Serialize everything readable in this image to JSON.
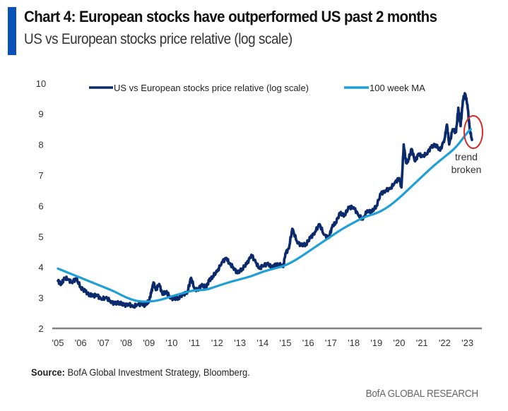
{
  "header": {
    "title": "Chart 4: European stocks have outperformed US past 2 months",
    "subtitle": "US vs European stocks price relative (log scale)",
    "accent_color": "#0a52b8"
  },
  "footer": {
    "source_label": "Source:",
    "source_text": " BofA Global Investment Strategy, Bloomberg.",
    "brand": "BofA GLOBAL RESEARCH"
  },
  "chart_data": {
    "type": "line",
    "title": "Chart 4: European stocks have outperformed US past 2 months",
    "subtitle": "US vs European stocks price relative (log scale)",
    "xlabel": "",
    "ylabel": "",
    "x_tick_labels": [
      "'05",
      "'06",
      "'07",
      "'08",
      "'09",
      "'10",
      "'11",
      "'12",
      "'13",
      "'14",
      "'15",
      "'16",
      "'17",
      "'18",
      "'19",
      "'20",
      "'21",
      "'22",
      "'23"
    ],
    "x_tick_years": [
      2005,
      2006,
      2007,
      2008,
      2009,
      2010,
      2011,
      2012,
      2013,
      2014,
      2015,
      2016,
      2017,
      2018,
      2019,
      2020,
      2021,
      2022,
      2023
    ],
    "y_ticks": [
      2,
      3,
      4,
      5,
      6,
      7,
      8,
      9,
      10
    ],
    "ylim": [
      2,
      10
    ],
    "xlim": [
      2005,
      2024
    ],
    "grid": false,
    "legend": {
      "position": "top",
      "entries": [
        "US vs European stocks price relative (log scale)",
        "100 week MA"
      ]
    },
    "series": [
      {
        "name": "US vs European stocks price relative (log scale)",
        "color": "#0b2a6b",
        "x": [
          2005.0,
          2005.15,
          2005.3,
          2005.45,
          2005.6,
          2005.8,
          2006.0,
          2006.2,
          2006.4,
          2006.55,
          2006.7,
          2006.9,
          2007.1,
          2007.3,
          2007.5,
          2007.7,
          2007.9,
          2008.1,
          2008.3,
          2008.5,
          2008.7,
          2008.85,
          2009.0,
          2009.1,
          2009.2,
          2009.3,
          2009.45,
          2009.6,
          2009.75,
          2009.9,
          2010.1,
          2010.3,
          2010.5,
          2010.7,
          2010.85,
          2011.0,
          2011.15,
          2011.3,
          2011.5,
          2011.65,
          2011.8,
          2012.0,
          2012.2,
          2012.4,
          2012.55,
          2012.7,
          2012.9,
          2013.1,
          2013.3,
          2013.5,
          2013.7,
          2013.85,
          2014.0,
          2014.2,
          2014.4,
          2014.55,
          2014.7,
          2014.9,
          2015.0,
          2015.15,
          2015.3,
          2015.5,
          2015.7,
          2015.9,
          2016.1,
          2016.3,
          2016.5,
          2016.7,
          2016.9,
          2017.05,
          2017.2,
          2017.4,
          2017.6,
          2017.8,
          2018.0,
          2018.2,
          2018.4,
          2018.6,
          2018.8,
          2019.0,
          2019.2,
          2019.4,
          2019.6,
          2019.8,
          2020.0,
          2020.1,
          2020.2,
          2020.3,
          2020.4,
          2020.55,
          2020.7,
          2020.85,
          2021.0,
          2021.2,
          2021.4,
          2021.6,
          2021.8,
          2022.0,
          2022.1,
          2022.2,
          2022.35,
          2022.5,
          2022.6,
          2022.7,
          2022.8,
          2022.9,
          2023.0,
          2023.1,
          2023.2
        ],
        "values": [
          3.55,
          3.45,
          3.65,
          3.6,
          3.5,
          3.62,
          3.35,
          3.2,
          3.1,
          3.05,
          3.1,
          2.95,
          3.0,
          2.9,
          2.8,
          2.85,
          2.75,
          2.8,
          2.7,
          2.78,
          2.8,
          2.75,
          2.9,
          3.15,
          3.5,
          3.25,
          3.45,
          3.1,
          3.2,
          3.05,
          2.95,
          3.0,
          3.1,
          3.2,
          3.65,
          3.3,
          3.25,
          3.4,
          3.35,
          3.55,
          3.7,
          3.85,
          4.15,
          4.3,
          4.1,
          4.0,
          3.8,
          3.95,
          4.1,
          4.4,
          4.15,
          3.95,
          4.05,
          4.1,
          4.0,
          4.05,
          4.1,
          4.0,
          4.45,
          4.6,
          5.25,
          4.85,
          4.7,
          4.75,
          4.95,
          5.15,
          5.4,
          5.05,
          4.95,
          5.3,
          5.45,
          5.75,
          5.7,
          5.95,
          5.95,
          5.7,
          5.55,
          5.85,
          5.8,
          6.0,
          6.4,
          6.5,
          6.55,
          6.75,
          6.9,
          6.6,
          8.0,
          7.4,
          7.5,
          7.85,
          7.45,
          7.7,
          7.6,
          7.7,
          7.9,
          8.0,
          7.8,
          8.2,
          8.65,
          8.0,
          8.5,
          8.4,
          9.2,
          8.6,
          9.45,
          9.65,
          9.3,
          8.5,
          8.15
        ]
      },
      {
        "name": "100 week MA",
        "color": "#1f9fd6",
        "x": [
          2005.0,
          2005.5,
          2006.0,
          2006.5,
          2007.0,
          2007.5,
          2008.0,
          2008.5,
          2009.0,
          2009.5,
          2010.0,
          2010.5,
          2011.0,
          2011.5,
          2012.0,
          2012.5,
          2013.0,
          2013.5,
          2014.0,
          2014.5,
          2015.0,
          2015.5,
          2016.0,
          2016.5,
          2017.0,
          2017.5,
          2018.0,
          2018.5,
          2019.0,
          2019.5,
          2020.0,
          2020.5,
          2021.0,
          2021.5,
          2022.0,
          2022.5,
          2023.0,
          2023.15
        ],
        "values": [
          3.95,
          3.8,
          3.65,
          3.5,
          3.35,
          3.2,
          3.0,
          2.88,
          2.87,
          2.92,
          3.05,
          3.15,
          3.25,
          3.25,
          3.38,
          3.5,
          3.6,
          3.7,
          3.85,
          3.95,
          4.05,
          4.25,
          4.5,
          4.75,
          5.0,
          5.25,
          5.45,
          5.65,
          5.75,
          5.95,
          6.25,
          6.6,
          6.95,
          7.3,
          7.6,
          7.9,
          8.4,
          8.5
        ]
      }
    ],
    "annotations": [
      {
        "text": "trend broken",
        "lines": [
          "trend",
          "broken"
        ],
        "type": "ellipse",
        "color": "#d62b2b",
        "x": 2023.0,
        "y": 8.5
      }
    ]
  }
}
